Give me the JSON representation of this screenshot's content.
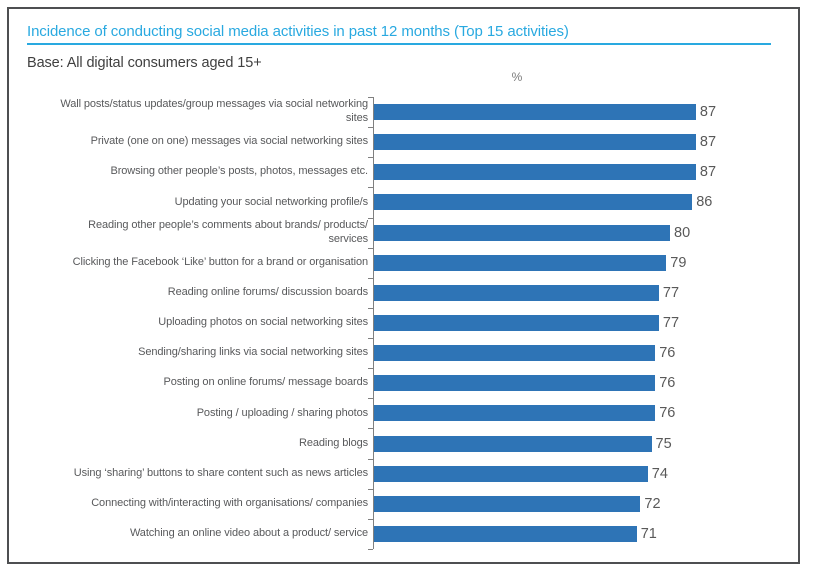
{
  "header": {
    "title": "Incidence of conducting social media activities in past 12 months (Top 15 activities)",
    "subtitle": "Base: All digital consumers aged 15+",
    "unit_label": "%"
  },
  "colors": {
    "accent": "#29a9e0",
    "bar": "#2e74b6",
    "subtitle_text": "#3f3f3f",
    "category_label_text": "#58595b",
    "value_label_text": "#595959",
    "axis": "#808080",
    "frame_border": "#4e4f51"
  },
  "chart_data": {
    "type": "bar",
    "orientation": "horizontal",
    "title": "Incidence of conducting social media activities in past 12 months (Top 15 activities)",
    "base_note": "Base: All digital consumers aged 15+",
    "unit": "%",
    "xlabel": "%",
    "ylabel": "",
    "xlim": [
      0,
      100
    ],
    "grid": false,
    "legend_position": "none",
    "value_labels_shown": true,
    "categories": [
      "Wall posts/status updates/group messages via social networking sites",
      "Private (one on one) messages via social networking sites",
      "Browsing other people’s posts, photos, messages etc.",
      "Updating your social networking profile/s",
      "Reading other people’s comments about brands/ products/ services",
      "Clicking the Facebook ‘Like’ button for a brand or organisation",
      "Reading online forums/ discussion boards",
      "Uploading photos on social networking sites",
      "Sending/sharing links via social networking sites",
      "Posting on online forums/ message boards",
      "Posting / uploading / sharing photos",
      "Reading blogs",
      "Using ‘sharing’ buttons to share content such as news articles",
      "Connecting with/interacting with organisations/ companies",
      "Watching an online video about a product/ service"
    ],
    "values": [
      87,
      87,
      87,
      86,
      80,
      79,
      77,
      77,
      76,
      76,
      76,
      75,
      74,
      72,
      71
    ]
  }
}
